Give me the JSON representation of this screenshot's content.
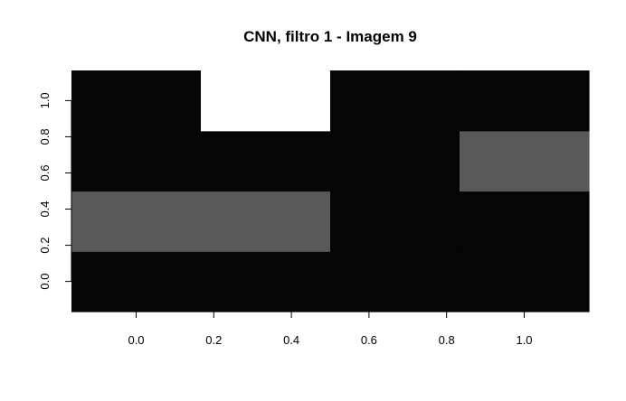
{
  "chart_data": {
    "type": "heatmap",
    "title": "CNN, filtro 1 - Imagem 9",
    "xlabel": "",
    "ylabel": "",
    "xlim": [
      -0.1667,
      1.1667
    ],
    "ylim": [
      -0.1667,
      1.1667
    ],
    "x_ticks": [
      "0.0",
      "0.2",
      "0.4",
      "0.6",
      "0.8",
      "1.0"
    ],
    "y_ticks": [
      "0.0",
      "0.2",
      "0.4",
      "0.6",
      "0.8",
      "1.0"
    ],
    "cols": 4,
    "rows": 4,
    "x_centers": [
      0.0,
      0.3333,
      0.6667,
      1.0
    ],
    "y_centers": [
      0.0,
      0.3333,
      0.6667,
      1.0
    ],
    "values": [
      [
        0.0,
        0.0,
        0.0,
        0.0
      ],
      [
        0.35,
        0.35,
        0.0,
        0.0
      ],
      [
        0.0,
        0.0,
        0.0,
        0.35
      ],
      [
        0.0,
        1.0,
        0.0,
        0.0
      ]
    ],
    "colors": {
      "low": "#050505",
      "mid": "#595959",
      "high": "#ffffff"
    },
    "grid": false
  }
}
